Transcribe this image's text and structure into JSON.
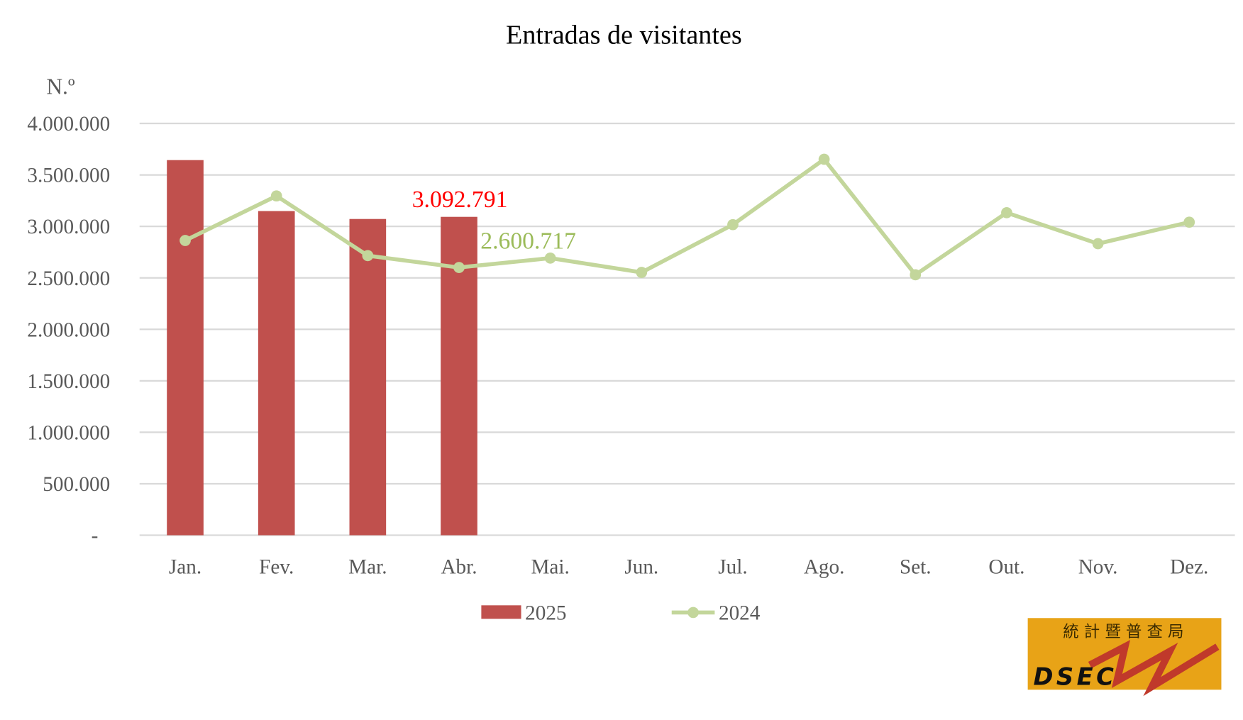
{
  "chart_data": {
    "type": "bar+line",
    "title": "Entradas de visitantes",
    "ylabel": "N.º",
    "ylim": [
      0,
      4000000
    ],
    "grid": true,
    "legend_position": "bottom",
    "y_ticks": [
      "-",
      "500.000",
      "1.000.000",
      "1.500.000",
      "2.000.000",
      "2.500.000",
      "3.000.000",
      "3.500.000",
      "4.000.000"
    ],
    "y_tick_values": [
      0,
      500000,
      1000000,
      1500000,
      2000000,
      2500000,
      3000000,
      3500000,
      4000000
    ],
    "categories": [
      "Jan.",
      "Fev.",
      "Mar.",
      "Abr.",
      "Mai.",
      "Jun.",
      "Jul.",
      "Ago.",
      "Set.",
      "Out.",
      "Nov.",
      "Dez."
    ],
    "series": [
      {
        "name": "2025",
        "type": "bar",
        "color": "#C0504D",
        "values": [
          3644000,
          3149000,
          3072000,
          3092791,
          null,
          null,
          null,
          null,
          null,
          null,
          null,
          null
        ]
      },
      {
        "name": "2024",
        "type": "line",
        "color": "#C3D69B",
        "values": [
          2863000,
          3296000,
          2716000,
          2600717,
          2692000,
          2553000,
          3017000,
          3652000,
          2530000,
          3133000,
          2832000,
          3041000
        ]
      }
    ],
    "annotations": [
      {
        "text": "3.092.791",
        "series": "2025",
        "category": "Abr.",
        "color": "#FF0000"
      },
      {
        "text": "2.600.717",
        "series": "2024",
        "category": "Abr.",
        "color": "#9BBB59"
      }
    ]
  },
  "logo": {
    "chinese": "統 計 暨 普 查 局",
    "text": "DSEC",
    "bg": "#E8A317"
  }
}
